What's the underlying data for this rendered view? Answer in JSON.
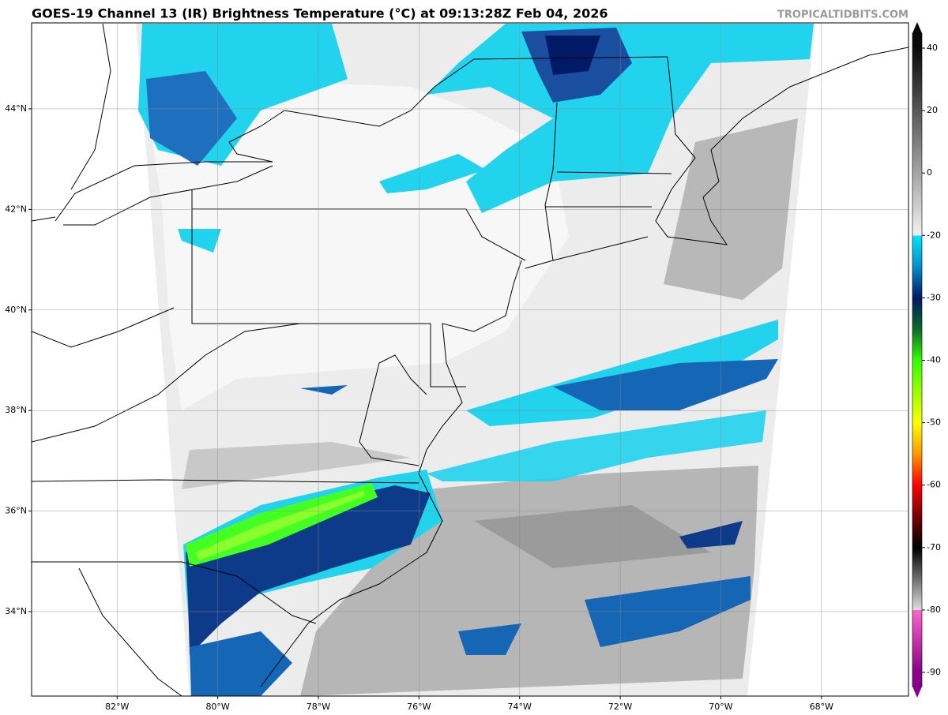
{
  "header": {
    "title": "GOES-19 Channel 13 (IR) Brightness Temperature (°C) at 09:13:28Z Feb 04, 2026",
    "credit": "TROPICALTIDBITS.COM"
  },
  "map": {
    "lonlim": [
      -83.7,
      -66.27
    ],
    "latlim": [
      32.32,
      45.71
    ],
    "lon_ticks": [
      {
        "value": -82,
        "label": "82°W"
      },
      {
        "value": -80,
        "label": "80°W"
      },
      {
        "value": -78,
        "label": "78°W"
      },
      {
        "value": -76,
        "label": "76°W"
      },
      {
        "value": -74,
        "label": "74°W"
      },
      {
        "value": -72,
        "label": "72°W"
      },
      {
        "value": -70,
        "label": "70°W"
      },
      {
        "value": -68,
        "label": "68°W"
      }
    ],
    "lat_ticks": [
      {
        "value": 44,
        "label": "44°N"
      },
      {
        "value": 42,
        "label": "42°N"
      },
      {
        "value": 40,
        "label": "40°N"
      },
      {
        "value": 38,
        "label": "38°N"
      },
      {
        "value": 36,
        "label": "36°N"
      },
      {
        "value": 34,
        "label": "34°N"
      }
    ]
  },
  "colorbar": {
    "ticks": [
      40,
      20,
      0,
      -20,
      -30,
      -40,
      -50,
      -60,
      -70,
      -80,
      -90
    ],
    "colormap": [
      {
        "value": 40,
        "color": "#0a0a0a"
      },
      {
        "value": -20,
        "color": "#f2f2f2"
      },
      {
        "value": -20,
        "color": "#00e5ff"
      },
      {
        "value": -25,
        "color": "#0090cc"
      },
      {
        "value": -30,
        "color": "#001a66"
      },
      {
        "value": -35,
        "color": "#0b6b2a"
      },
      {
        "value": -40,
        "color": "#33ff00"
      },
      {
        "value": -50,
        "color": "#ffff00"
      },
      {
        "value": -55,
        "color": "#ff9900"
      },
      {
        "value": -60,
        "color": "#ff0000"
      },
      {
        "value": -65,
        "color": "#7a0000"
      },
      {
        "value": -70,
        "color": "#000000"
      },
      {
        "value": -80,
        "color": "#dddddd"
      },
      {
        "value": -80,
        "color": "#ff66cc"
      },
      {
        "value": -90,
        "color": "#8a008a"
      }
    ]
  }
}
